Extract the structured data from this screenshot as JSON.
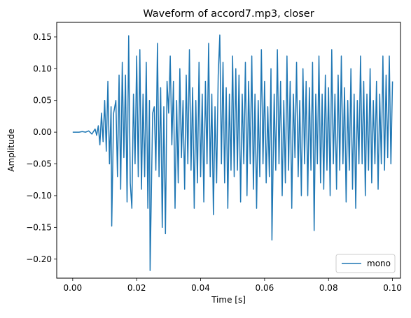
{
  "chart_data": {
    "type": "line",
    "title": "Waveform of accord7.mp3, closer",
    "xlabel": "Time [s]",
    "ylabel": "Amplitude",
    "xlim": [
      -0.005,
      0.1025
    ],
    "ylim": [
      -0.23,
      0.173
    ],
    "xticks": [
      0.0,
      0.02,
      0.04,
      0.06,
      0.08,
      0.1
    ],
    "xtick_labels": [
      "0.00",
      "0.02",
      "0.04",
      "0.06",
      "0.08",
      "0.10"
    ],
    "yticks": [
      0.15,
      0.1,
      0.05,
      0.0,
      -0.05,
      -0.1,
      -0.15,
      -0.2
    ],
    "ytick_labels": [
      "0.15",
      "0.10",
      "0.05",
      "0.00",
      "−0.05",
      "−0.10",
      "−0.15",
      "−0.20"
    ],
    "grid": false,
    "legend": {
      "position": "bottom-right",
      "entries": [
        "mono"
      ]
    },
    "series": [
      {
        "name": "mono",
        "color": "#1f77b4",
        "points": [
          [
            0.0,
            0.0
          ],
          [
            0.002,
            0.0
          ],
          [
            0.003,
            0.001
          ],
          [
            0.004,
            0.0
          ],
          [
            0.005,
            0.002
          ],
          [
            0.006,
            -0.003
          ],
          [
            0.007,
            0.005
          ],
          [
            0.0075,
            -0.005
          ],
          [
            0.008,
            0.01
          ],
          [
            0.0085,
            -0.02
          ],
          [
            0.009,
            0.03
          ],
          [
            0.0095,
            -0.015
          ],
          [
            0.01,
            0.05
          ],
          [
            0.0105,
            -0.03
          ],
          [
            0.011,
            0.08
          ],
          [
            0.0115,
            -0.05
          ],
          [
            0.012,
            0.04
          ],
          [
            0.0122,
            -0.148
          ],
          [
            0.0128,
            0.03
          ],
          [
            0.0135,
            0.05
          ],
          [
            0.014,
            -0.07
          ],
          [
            0.0145,
            0.09
          ],
          [
            0.015,
            -0.09
          ],
          [
            0.0155,
            0.11
          ],
          [
            0.016,
            -0.04
          ],
          [
            0.0165,
            0.09
          ],
          [
            0.017,
            -0.11
          ],
          [
            0.0175,
            0.152
          ],
          [
            0.018,
            -0.08
          ],
          [
            0.0185,
            -0.12
          ],
          [
            0.019,
            0.06
          ],
          [
            0.0195,
            -0.05
          ],
          [
            0.02,
            0.12
          ],
          [
            0.0205,
            -0.07
          ],
          [
            0.021,
            0.13
          ],
          [
            0.0215,
            -0.09
          ],
          [
            0.022,
            0.06
          ],
          [
            0.0225,
            -0.07
          ],
          [
            0.023,
            0.11
          ],
          [
            0.0235,
            -0.12
          ],
          [
            0.024,
            0.05
          ],
          [
            0.0242,
            -0.218
          ],
          [
            0.025,
            0.03
          ],
          [
            0.0255,
            0.04
          ],
          [
            0.026,
            -0.06
          ],
          [
            0.0265,
            0.14
          ],
          [
            0.027,
            -0.07
          ],
          [
            0.0275,
            0.07
          ],
          [
            0.028,
            -0.15
          ],
          [
            0.0285,
            0.04
          ],
          [
            0.029,
            -0.16
          ],
          [
            0.0295,
            0.08
          ],
          [
            0.03,
            0.03
          ],
          [
            0.0305,
            0.12
          ],
          [
            0.031,
            -0.02
          ],
          [
            0.0315,
            0.08
          ],
          [
            0.032,
            -0.12
          ],
          [
            0.0325,
            0.05
          ],
          [
            0.033,
            -0.08
          ],
          [
            0.0335,
            0.1
          ],
          [
            0.034,
            -0.04
          ],
          [
            0.0345,
            0.05
          ],
          [
            0.035,
            -0.09
          ],
          [
            0.0355,
            0.09
          ],
          [
            0.036,
            -0.05
          ],
          [
            0.0365,
            0.13
          ],
          [
            0.037,
            -0.06
          ],
          [
            0.0375,
            0.07
          ],
          [
            0.038,
            -0.12
          ],
          [
            0.0385,
            0.05
          ],
          [
            0.039,
            -0.08
          ],
          [
            0.0395,
            0.11
          ],
          [
            0.04,
            -0.07
          ],
          [
            0.0405,
            0.06
          ],
          [
            0.041,
            -0.11
          ],
          [
            0.0415,
            0.08
          ],
          [
            0.042,
            -0.05
          ],
          [
            0.0425,
            0.14
          ],
          [
            0.043,
            -0.07
          ],
          [
            0.0435,
            0.06
          ],
          [
            0.044,
            -0.13
          ],
          [
            0.0445,
            0.04
          ],
          [
            0.045,
            -0.08
          ],
          [
            0.0455,
            0.09
          ],
          [
            0.046,
            0.153
          ],
          [
            0.0465,
            -0.05
          ],
          [
            0.047,
            0.11
          ],
          [
            0.0475,
            -0.08
          ],
          [
            0.048,
            0.07
          ],
          [
            0.0485,
            -0.12
          ],
          [
            0.049,
            0.06
          ],
          [
            0.0495,
            -0.06
          ],
          [
            0.05,
            0.12
          ],
          [
            0.0505,
            -0.07
          ],
          [
            0.051,
            0.1
          ],
          [
            0.0515,
            -0.06
          ],
          [
            0.052,
            0.09
          ],
          [
            0.0525,
            -0.11
          ],
          [
            0.053,
            0.06
          ],
          [
            0.0535,
            -0.05
          ],
          [
            0.054,
            0.11
          ],
          [
            0.0545,
            -0.1
          ],
          [
            0.055,
            0.08
          ],
          [
            0.0555,
            -0.05
          ],
          [
            0.056,
            0.12
          ],
          [
            0.0565,
            -0.09
          ],
          [
            0.057,
            0.06
          ],
          [
            0.0575,
            -0.12
          ],
          [
            0.058,
            0.05
          ],
          [
            0.0585,
            -0.07
          ],
          [
            0.059,
            0.13
          ],
          [
            0.0595,
            -0.05
          ],
          [
            0.06,
            0.08
          ],
          [
            0.0605,
            -0.08
          ],
          [
            0.061,
            0.04
          ],
          [
            0.0615,
            -0.07
          ],
          [
            0.062,
            0.1
          ],
          [
            0.0623,
            -0.17
          ],
          [
            0.063,
            0.06
          ],
          [
            0.0635,
            -0.06
          ],
          [
            0.064,
            0.13
          ],
          [
            0.0645,
            -0.05
          ],
          [
            0.065,
            0.08
          ],
          [
            0.0655,
            -0.1
          ],
          [
            0.066,
            0.05
          ],
          [
            0.0665,
            -0.08
          ],
          [
            0.067,
            0.12
          ],
          [
            0.0675,
            -0.06
          ],
          [
            0.068,
            0.08
          ],
          [
            0.0685,
            -0.12
          ],
          [
            0.069,
            0.06
          ],
          [
            0.0695,
            -0.04
          ],
          [
            0.07,
            0.11
          ],
          [
            0.0705,
            -0.07
          ],
          [
            0.071,
            0.05
          ],
          [
            0.0715,
            -0.1
          ],
          [
            0.072,
            0.1
          ],
          [
            0.0725,
            -0.05
          ],
          [
            0.073,
            0.08
          ],
          [
            0.0735,
            -0.1
          ],
          [
            0.074,
            0.07
          ],
          [
            0.0745,
            -0.06
          ],
          [
            0.075,
            0.11
          ],
          [
            0.0755,
            -0.155
          ],
          [
            0.076,
            0.06
          ],
          [
            0.0765,
            -0.05
          ],
          [
            0.077,
            0.12
          ],
          [
            0.0775,
            -0.08
          ],
          [
            0.078,
            0.06
          ],
          [
            0.0785,
            -0.09
          ],
          [
            0.079,
            0.09
          ],
          [
            0.0795,
            -0.06
          ],
          [
            0.08,
            0.07
          ],
          [
            0.0805,
            -0.1
          ],
          [
            0.081,
            0.13
          ],
          [
            0.0815,
            -0.05
          ],
          [
            0.082,
            0.06
          ],
          [
            0.0825,
            -0.09
          ],
          [
            0.083,
            0.09
          ],
          [
            0.0835,
            -0.06
          ],
          [
            0.084,
            0.12
          ],
          [
            0.0845,
            -0.05
          ],
          [
            0.085,
            0.07
          ],
          [
            0.0855,
            -0.11
          ],
          [
            0.086,
            0.05
          ],
          [
            0.0865,
            -0.06
          ],
          [
            0.087,
            0.1
          ],
          [
            0.0875,
            -0.09
          ],
          [
            0.088,
            0.06
          ],
          [
            0.0885,
            -0.12
          ],
          [
            0.089,
            0.05
          ],
          [
            0.0895,
            -0.05
          ],
          [
            0.09,
            0.12
          ],
          [
            0.0905,
            -0.05
          ],
          [
            0.091,
            0.08
          ],
          [
            0.0915,
            -0.1
          ],
          [
            0.092,
            0.06
          ],
          [
            0.0925,
            -0.06
          ],
          [
            0.093,
            0.1
          ],
          [
            0.0935,
            -0.08
          ],
          [
            0.094,
            0.05
          ],
          [
            0.0945,
            -0.05
          ],
          [
            0.095,
            0.08
          ],
          [
            0.0955,
            -0.09
          ],
          [
            0.096,
            0.06
          ],
          [
            0.0965,
            -0.05
          ],
          [
            0.097,
            0.12
          ],
          [
            0.0975,
            -0.06
          ],
          [
            0.098,
            0.09
          ],
          [
            0.0985,
            -0.04
          ],
          [
            0.099,
            0.12
          ],
          [
            0.0995,
            -0.05
          ],
          [
            0.1,
            0.08
          ]
        ]
      }
    ]
  }
}
